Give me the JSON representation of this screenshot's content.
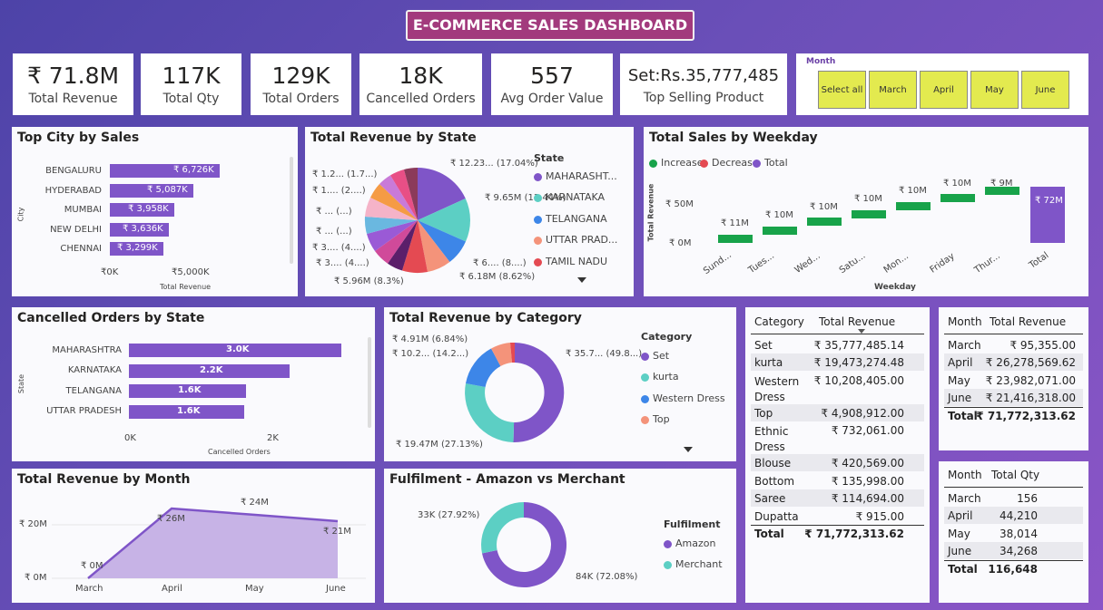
{
  "title": "E-COMMERCE SALES DASHBOARD",
  "kpis": [
    {
      "value": "₹ 71.8M",
      "label": "Total Revenue"
    },
    {
      "value": "117K",
      "label": "Total Qty"
    },
    {
      "value": "129K",
      "label": "Total Orders"
    },
    {
      "value": "18K",
      "label": "Cancelled Orders"
    },
    {
      "value": "557",
      "label": "Avg Order Value"
    },
    {
      "value": "Set:Rs.35,777,485",
      "label": "Top Selling Product"
    }
  ],
  "month_slicer": {
    "label": "Month",
    "options": [
      "Select all",
      "March",
      "April",
      "May",
      "June"
    ]
  },
  "city_chart": {
    "title": "Top City by Sales",
    "ylabel": "City",
    "xlabel": "Total Revenue",
    "ticks": [
      "₹0K",
      "₹5,000K"
    ],
    "cities": [
      "BENGALURU",
      "HYDERABAD",
      "MUMBAI",
      "NEW DELHI",
      "CHENNAI"
    ],
    "labels": [
      "₹ 6,726K",
      "₹ 5,087K",
      "₹ 3,958K",
      "₹ 3,636K",
      "₹ 3,299K"
    ],
    "values": [
      6726,
      5087,
      3958,
      3636,
      3299
    ]
  },
  "state_pie": {
    "title": "Total Revenue by State",
    "legend_title": "State",
    "legend": [
      "MAHARASHT...",
      "KARNATAKA",
      "TELANGANA",
      "UTTAR PRAD...",
      "TAMIL NADU"
    ],
    "labels": [
      "₹ 12.23... (17.04%)",
      "₹ 9.65M (13.44%)",
      "₹ 6.... (8....)",
      "₹ 6.18M (8.62%)",
      "₹ 5.96M (8.3%)",
      "₹ 3.... (4....)",
      "₹ 3.... (4....)",
      "₹ ... (...)",
      "₹ ... (...)",
      "₹ 1.... (2....)",
      "₹ 1.2... (1.7...)"
    ]
  },
  "weekday_chart": {
    "title": "Total Sales by Weekday",
    "legend": [
      "Increase",
      "Decrease",
      "Total"
    ],
    "ylabel": "Total Revenue",
    "xlabel": "Weekday",
    "yticks": [
      "₹ 50M",
      "₹ 0M"
    ],
    "days": [
      "Sund...",
      "Tues...",
      "Wed...",
      "Satu...",
      "Mon...",
      "Friday",
      "Thur...",
      "Total"
    ],
    "labels": [
      "₹ 11M",
      "₹ 10M",
      "₹ 10M",
      "₹ 10M",
      "₹ 10M",
      "₹ 10M",
      "₹ 9M",
      "₹ 72M"
    ]
  },
  "cancel_chart": {
    "title": "Cancelled Orders by State",
    "ylabel": "State",
    "xlabel": "Cancelled Orders",
    "ticks": [
      "0K",
      "2K"
    ],
    "states": [
      "MAHARASHTRA",
      "KARNATAKA",
      "TELANGANA",
      "UTTAR PRADESH"
    ],
    "labels": [
      "3.0K",
      "2.2K",
      "1.6K",
      "1.6K"
    ],
    "values": [
      3.0,
      2.2,
      1.6,
      1.6
    ]
  },
  "category_donut": {
    "title": "Total Revenue by Category",
    "legend_title": "Category",
    "legend": [
      "Set",
      "kurta",
      "Western Dress",
      "Top"
    ],
    "labels": [
      "₹ 4.91M (6.84%)",
      "₹ 10.2... (14.2...)",
      "₹ 35.7... (49.8...)",
      "₹ 19.47M (27.13%)"
    ]
  },
  "category_table": {
    "headers": [
      "Category",
      "Total Revenue"
    ],
    "rows": [
      [
        "Set",
        "₹ 35,777,485.14"
      ],
      [
        "kurta",
        "₹ 19,473,274.48"
      ],
      [
        "Western Dress",
        "₹ 10,208,405.00"
      ],
      [
        "Top",
        "₹ 4,908,912.00"
      ],
      [
        "Ethnic Dress",
        "₹ 732,061.00"
      ],
      [
        "Blouse",
        "₹ 420,569.00"
      ],
      [
        "Bottom",
        "₹ 135,998.00"
      ],
      [
        "Saree",
        "₹ 114,694.00"
      ],
      [
        "Dupatta",
        "₹ 915.00"
      ]
    ],
    "total": [
      "Total",
      "₹ 71,772,313.62"
    ]
  },
  "month_rev_table": {
    "headers": [
      "Month",
      "Total Revenue"
    ],
    "rows": [
      [
        "March",
        "₹ 95,355.00"
      ],
      [
        "April",
        "₹ 26,278,569.62"
      ],
      [
        "May",
        "₹ 23,982,071.00"
      ],
      [
        "June",
        "₹ 21,416,318.00"
      ]
    ],
    "total": [
      "Total",
      "₹ 71,772,313.62"
    ]
  },
  "month_qty_table": {
    "headers": [
      "Month",
      "Total Qty"
    ],
    "rows": [
      [
        "March",
        "156"
      ],
      [
        "April",
        "44,210"
      ],
      [
        "May",
        "38,014"
      ],
      [
        "June",
        "34,268"
      ]
    ],
    "total": [
      "Total",
      "116,648"
    ]
  },
  "month_area": {
    "title": "Total Revenue by Month",
    "yticks": [
      "₹ 20M",
      "₹ 0M"
    ],
    "months": [
      "March",
      "April",
      "May",
      "June"
    ],
    "labels": [
      "₹ 0M",
      "₹ 26M",
      "₹ 24M",
      "₹ 21M"
    ]
  },
  "fulfilment": {
    "title": "Fulfilment - Amazon vs Merchant",
    "legend_title": "Fulfilment",
    "legend": [
      "Amazon",
      "Merchant"
    ],
    "labels": [
      "33K (27.92%)",
      "84K (72.08%)"
    ]
  },
  "chart_data": [
    {
      "type": "bar",
      "title": "Top City by Sales",
      "categories": [
        "BENGALURU",
        "HYDERABAD",
        "MUMBAI",
        "NEW DELHI",
        "CHENNAI"
      ],
      "values": [
        6726,
        5087,
        3958,
        3636,
        3299
      ],
      "xlabel": "Total Revenue",
      "ylabel": "City"
    },
    {
      "type": "pie",
      "title": "Total Revenue by State",
      "categories": [
        "MAHARASHTRA",
        "KARNATAKA",
        "TELANGANA",
        "UTTAR PRADESH",
        "TAMIL NADU"
      ],
      "values": [
        17.04,
        13.44,
        8.7,
        8.62,
        8.3
      ]
    },
    {
      "type": "bar",
      "title": "Total Sales by Weekday",
      "categories": [
        "Sunday",
        "Tuesday",
        "Wednesday",
        "Saturday",
        "Monday",
        "Friday",
        "Thursday",
        "Total"
      ],
      "values": [
        11,
        10,
        10,
        10,
        10,
        10,
        9,
        72
      ],
      "ylabel": "Total Revenue"
    },
    {
      "type": "bar",
      "title": "Cancelled Orders by State",
      "categories": [
        "MAHARASHTRA",
        "KARNATAKA",
        "TELANGANA",
        "UTTAR PRADESH"
      ],
      "values": [
        3.0,
        2.2,
        1.6,
        1.6
      ],
      "xlabel": "Cancelled Orders",
      "ylabel": "State"
    },
    {
      "type": "pie",
      "title": "Total Revenue by Category",
      "categories": [
        "Set",
        "kurta",
        "Western Dress",
        "Top"
      ],
      "values": [
        49.8,
        27.13,
        14.2,
        6.84
      ]
    },
    {
      "type": "area",
      "title": "Total Revenue by Month",
      "categories": [
        "March",
        "April",
        "May",
        "June"
      ],
      "values": [
        0.1,
        26,
        24,
        21
      ]
    },
    {
      "type": "pie",
      "title": "Fulfilment - Amazon vs Merchant",
      "categories": [
        "Amazon",
        "Merchant"
      ],
      "values": [
        72.08,
        27.92
      ]
    }
  ]
}
